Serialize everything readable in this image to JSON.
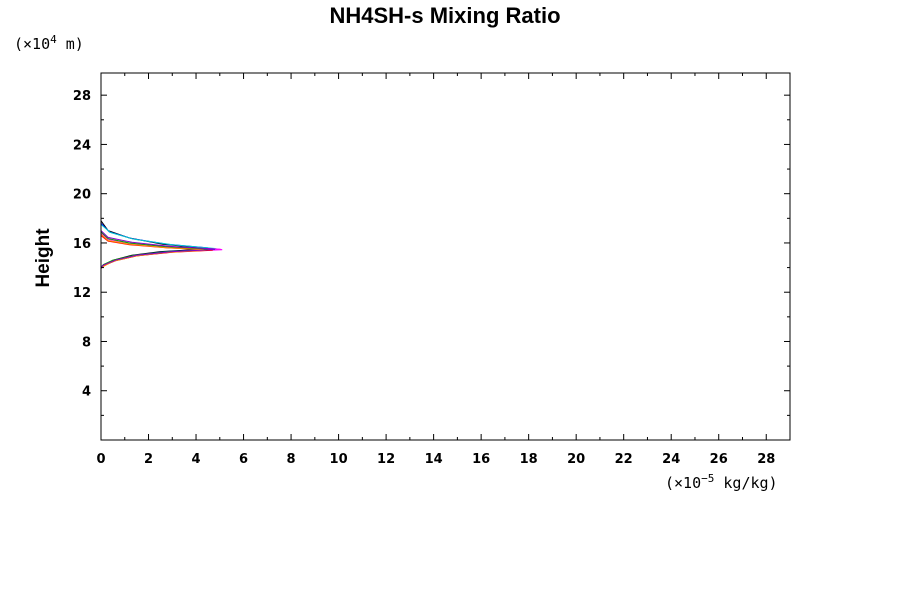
{
  "chart_data": {
    "type": "line",
    "title": "NH4SH-s Mixing Ratio",
    "ylabel": "Height",
    "xlabel": "",
    "y_unit": {
      "prefix": "(×10",
      "exponent": "4",
      "suffix": " m)"
    },
    "x_unit": {
      "prefix": "(×10",
      "exponent": "−5",
      "suffix": " kg/kg)"
    },
    "xlim": [
      0,
      29
    ],
    "ylim": [
      0,
      29.8
    ],
    "x_ticks": [
      "0",
      "2",
      "4",
      "6",
      "8",
      "10",
      "12",
      "14",
      "16",
      "18",
      "20",
      "22",
      "24",
      "26",
      "28"
    ],
    "y_ticks": [
      "4",
      "8",
      "12",
      "16",
      "20",
      "24",
      "28"
    ],
    "series": [
      {
        "color": "#000000",
        "points": [
          [
            0,
            17.8
          ],
          [
            0.3,
            17.0
          ],
          [
            1.2,
            16.4
          ],
          [
            2.6,
            15.9
          ],
          [
            4.2,
            15.6
          ],
          [
            4.3,
            15.5
          ],
          [
            2.5,
            15.3
          ],
          [
            1.3,
            15.0
          ],
          [
            0.5,
            14.6
          ],
          [
            0.1,
            14.2
          ],
          [
            0,
            14.0
          ]
        ]
      },
      {
        "color": "#0000ff",
        "points": [
          [
            0,
            17.6
          ],
          [
            0.35,
            16.9
          ],
          [
            1.3,
            16.35
          ],
          [
            2.8,
            15.9
          ],
          [
            4.5,
            15.6
          ],
          [
            4.6,
            15.5
          ],
          [
            2.7,
            15.3
          ],
          [
            1.4,
            15.0
          ],
          [
            0.6,
            14.6
          ],
          [
            0.1,
            14.2
          ],
          [
            0,
            14.05
          ]
        ]
      },
      {
        "color": "#00cccc",
        "points": [
          [
            0,
            17.5
          ],
          [
            0.4,
            16.85
          ],
          [
            1.4,
            16.3
          ],
          [
            3.0,
            15.85
          ],
          [
            4.8,
            15.55
          ],
          [
            4.9,
            15.5
          ],
          [
            2.9,
            15.25
          ],
          [
            1.5,
            14.95
          ],
          [
            0.6,
            14.55
          ],
          [
            0.1,
            14.15
          ],
          [
            0,
            14.0
          ]
        ]
      },
      {
        "color": "#ff00ff",
        "points": [
          [
            0,
            16.8
          ],
          [
            0.3,
            16.3
          ],
          [
            1.3,
            15.95
          ],
          [
            3.0,
            15.65
          ],
          [
            5.0,
            15.5
          ],
          [
            5.1,
            15.45
          ],
          [
            3.2,
            15.3
          ],
          [
            1.6,
            15.0
          ],
          [
            0.6,
            14.6
          ],
          [
            0.1,
            14.2
          ],
          [
            0,
            13.9
          ]
        ]
      },
      {
        "color": "#ff0000",
        "points": [
          [
            0,
            16.6
          ],
          [
            0.3,
            16.15
          ],
          [
            1.2,
            15.85
          ],
          [
            2.8,
            15.6
          ],
          [
            4.6,
            15.45
          ],
          [
            4.7,
            15.4
          ],
          [
            3.0,
            15.25
          ],
          [
            1.5,
            14.95
          ],
          [
            0.6,
            14.55
          ],
          [
            0.1,
            14.15
          ],
          [
            0,
            13.95
          ]
        ]
      },
      {
        "color": "#00aa00",
        "points": [
          [
            0,
            16.9
          ],
          [
            0.3,
            16.35
          ],
          [
            1.2,
            16.0
          ],
          [
            2.7,
            15.7
          ],
          [
            4.4,
            15.5
          ],
          [
            4.5,
            15.45
          ],
          [
            2.8,
            15.3
          ],
          [
            1.4,
            15.0
          ],
          [
            0.5,
            14.6
          ],
          [
            0.1,
            14.25
          ],
          [
            0,
            14.0
          ]
        ]
      },
      {
        "color": "#ff8800",
        "points": [
          [
            0,
            16.7
          ],
          [
            0.3,
            16.2
          ],
          [
            1.2,
            15.9
          ],
          [
            2.7,
            15.62
          ],
          [
            4.3,
            15.45
          ],
          [
            4.4,
            15.4
          ],
          [
            2.7,
            15.22
          ],
          [
            1.4,
            14.92
          ],
          [
            0.5,
            14.5
          ],
          [
            0.1,
            14.1
          ],
          [
            0,
            13.95
          ]
        ]
      },
      {
        "color": "#8800cc",
        "points": [
          [
            0,
            17.0
          ],
          [
            0.3,
            16.45
          ],
          [
            1.3,
            16.05
          ],
          [
            2.9,
            15.72
          ],
          [
            4.7,
            15.52
          ],
          [
            4.8,
            15.47
          ],
          [
            3.0,
            15.3
          ],
          [
            1.5,
            15.0
          ],
          [
            0.6,
            14.6
          ],
          [
            0.1,
            14.2
          ],
          [
            0,
            14.0
          ]
        ]
      }
    ]
  }
}
